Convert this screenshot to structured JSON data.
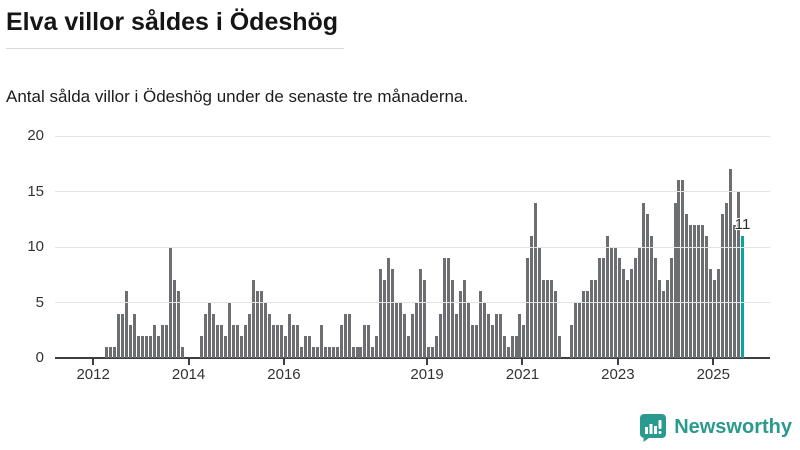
{
  "header": {
    "title": "Elva villor såldes i Ödeshög",
    "subtitle": "Antal sålda villor i Ödeshög under de senaste tre månaderna."
  },
  "chart_data": {
    "type": "bar",
    "title": "Elva villor såldes i Ödeshög",
    "subtitle": "Antal sålda villor i Ödeshög under de senaste tre månaderna.",
    "period_start": "2012-01",
    "period_end": "2025-08",
    "values": [
      0,
      0,
      0,
      1,
      1,
      1,
      4,
      4,
      6,
      3,
      4,
      2,
      2,
      2,
      2,
      3,
      2,
      3,
      3,
      10,
      7,
      6,
      1,
      0,
      0,
      0,
      0,
      2,
      4,
      5,
      4,
      3,
      3,
      2,
      5,
      3,
      3,
      2,
      3,
      4,
      7,
      6,
      6,
      5,
      4,
      3,
      3,
      3,
      2,
      4,
      3,
      3,
      1,
      2,
      2,
      1,
      1,
      3,
      1,
      1,
      1,
      1,
      3,
      4,
      4,
      1,
      1,
      1,
      3,
      3,
      1,
      2,
      8,
      7,
      9,
      8,
      5,
      5,
      4,
      2,
      4,
      5,
      8,
      7,
      1,
      1,
      2,
      4,
      9,
      9,
      7,
      4,
      6,
      7,
      5,
      3,
      3,
      6,
      5,
      4,
      3,
      4,
      4,
      2,
      1,
      2,
      2,
      4,
      3,
      9,
      11,
      14,
      10,
      7,
      7,
      7,
      6,
      2,
      0,
      0,
      3,
      5,
      5,
      6,
      6,
      7,
      7,
      9,
      9,
      11,
      10,
      10,
      9,
      8,
      7,
      8,
      9,
      10,
      14,
      13,
      11,
      9,
      7,
      6,
      7,
      9,
      14,
      16,
      16,
      13,
      12,
      12,
      12,
      12,
      11,
      8,
      7,
      8,
      13,
      14,
      17,
      12,
      15,
      11
    ],
    "highlight_last": true,
    "highlight_value_label": "11",
    "ylim": [
      0,
      20
    ],
    "y_ticks": [
      0,
      5,
      10,
      15,
      20
    ],
    "x_ticks": [
      {
        "label": "2012",
        "month_offset": 0
      },
      {
        "label": "2014",
        "month_offset": 24
      },
      {
        "label": "2016",
        "month_offset": 48
      },
      {
        "label": "2019",
        "month_offset": 84
      },
      {
        "label": "2021",
        "month_offset": 108
      },
      {
        "label": "2023",
        "month_offset": 132
      },
      {
        "label": "2025",
        "month_offset": 156
      }
    ],
    "grid": true,
    "legend": "none",
    "colors": {
      "bar": "#6d6e71",
      "highlight": "#0fa3a0",
      "grid": "#e3e3e3",
      "axis": "#3f3f3f",
      "text": "#333333"
    }
  },
  "footer": {
    "brand": "Newsworthy",
    "brand_color": "#2a9a8f",
    "logo_icon": "bar-chart-speech-bubble"
  }
}
